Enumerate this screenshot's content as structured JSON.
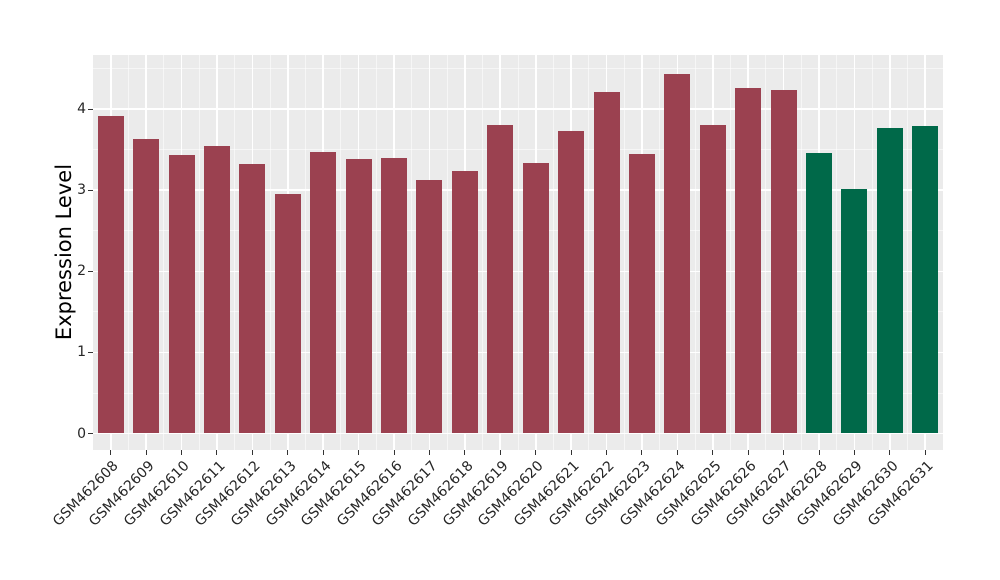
{
  "chart_data": {
    "type": "bar",
    "title": "",
    "xlabel": "",
    "ylabel": "Expression Level",
    "categories": [
      "GSM462608",
      "GSM462609",
      "GSM462610",
      "GSM462611",
      "GSM462612",
      "GSM462613",
      "GSM462614",
      "GSM462615",
      "GSM462616",
      "GSM462617",
      "GSM462618",
      "GSM462619",
      "GSM462620",
      "GSM462621",
      "GSM462622",
      "GSM462623",
      "GSM462624",
      "GSM462625",
      "GSM462626",
      "GSM462627",
      "GSM462628",
      "GSM462629",
      "GSM462630",
      "GSM462631"
    ],
    "values": [
      3.92,
      3.63,
      3.44,
      3.55,
      3.32,
      2.95,
      3.47,
      3.39,
      3.4,
      3.13,
      3.24,
      3.8,
      3.33,
      3.73,
      4.21,
      3.45,
      4.43,
      3.81,
      4.26,
      4.24,
      3.46,
      3.01,
      3.77,
      3.79
    ],
    "bar_colors": {
      "default": "#9B4150",
      "highlight": "#006949",
      "highlight_categories": [
        "GSM462628",
        "GSM462629",
        "GSM462630",
        "GSM462631"
      ]
    },
    "yticks": [
      "0",
      "1",
      "2",
      "3",
      "4"
    ],
    "ytick_values": [
      0,
      1,
      2,
      3,
      4
    ],
    "ylim": [
      -0.22,
      4.67
    ],
    "legend": "none",
    "grid": {
      "major": "on",
      "minor": "on",
      "color": "#FFFFFF"
    },
    "panel_background": "#EBEBEB",
    "tick_color": "#333333",
    "tick_label_color": "#262626",
    "axis_title_color": "#000000"
  }
}
